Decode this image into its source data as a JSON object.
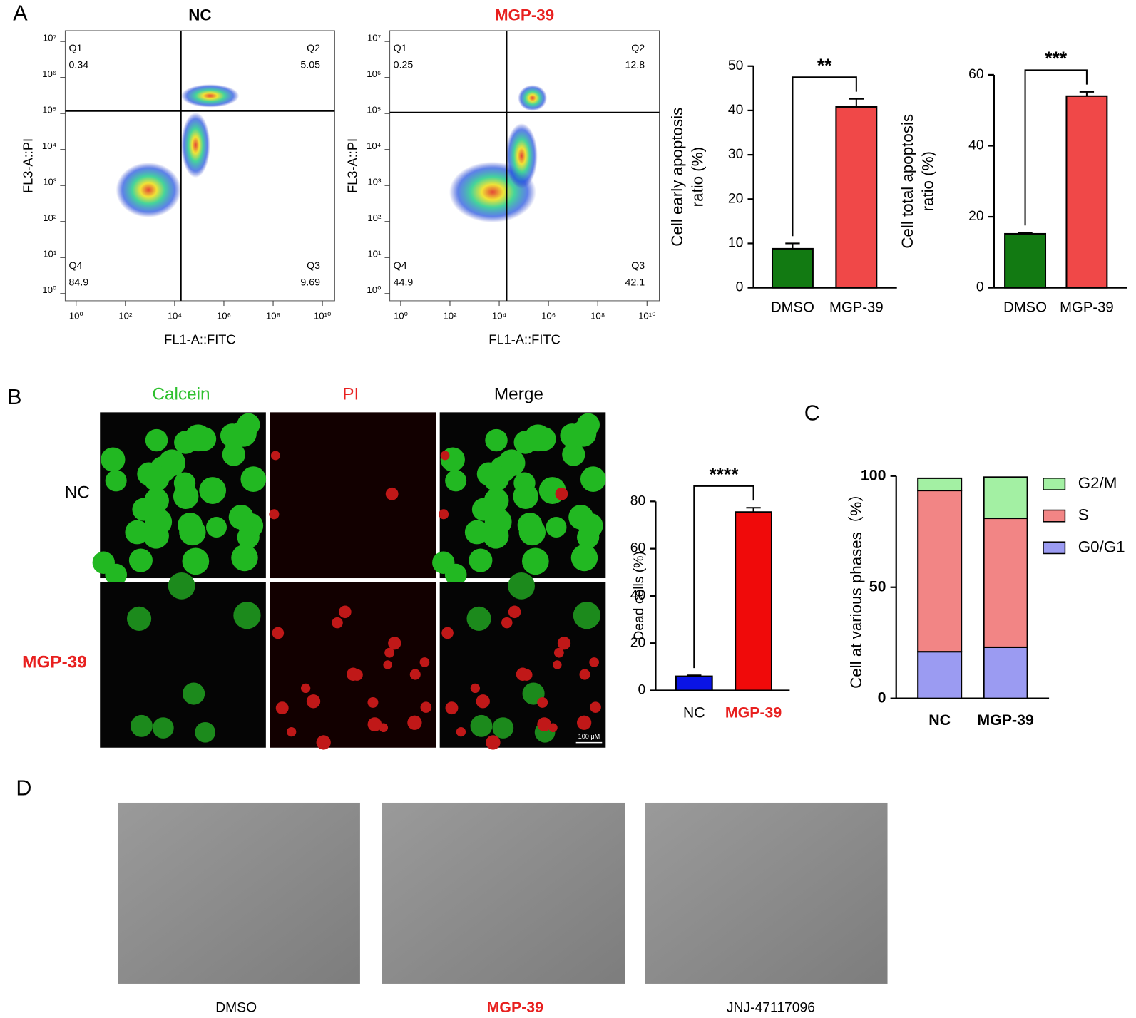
{
  "panel_labels": [
    "A",
    "B",
    "C",
    "D"
  ],
  "fluorescence": {
    "columns": [
      "Calcein",
      "PI",
      "Merge"
    ],
    "rows": [
      "NC",
      "MGP-39"
    ],
    "scale_bar": "100 μM"
  },
  "tube_formation": {
    "labels": [
      "DMSO",
      "MGP-39",
      "JNJ-47117096"
    ]
  },
  "chart_data": [
    {
      "type": "flow",
      "title": "NC",
      "title_color": "#000000",
      "xlabel": "FL1-A::FITC",
      "ylabel": "FL3-A::PI",
      "log_x": true,
      "log_y": true,
      "xlim": [
        0.36,
        31600000000
      ],
      "ylim": [
        0.63,
        20000000
      ],
      "xticks": [
        {
          "value": 1,
          "label": "10⁰"
        },
        {
          "value": 100,
          "label": "10²"
        },
        {
          "value": 10000,
          "label": "10⁴"
        },
        {
          "value": 1000000,
          "label": "10⁶"
        },
        {
          "value": 100000000,
          "label": "10⁸"
        },
        {
          "value": 10000000000,
          "label": "10¹⁰"
        }
      ],
      "yticks": [
        {
          "value": 1,
          "label": "10⁰"
        },
        {
          "value": 10,
          "label": "10¹"
        },
        {
          "value": 100,
          "label": "10²"
        },
        {
          "value": 1000,
          "label": "10³"
        },
        {
          "value": 10000,
          "label": "10⁴"
        },
        {
          "value": 100000,
          "label": "10⁵"
        },
        {
          "value": 1000000,
          "label": "10⁶"
        },
        {
          "value": 10000000,
          "label": "10⁷"
        }
      ],
      "gate": [
        18000,
        117000
      ],
      "quadrants": [
        {
          "name": "Q1",
          "value": 0.34
        },
        {
          "name": "Q2",
          "value": 5.05
        },
        {
          "name": "Q3",
          "value": 9.69
        },
        {
          "name": "Q4",
          "value": 84.9
        }
      ]
    },
    {
      "type": "flow",
      "title": "MGP-39",
      "title_color": "#e8201f",
      "xlabel": "FL1-A::FITC",
      "ylabel": "FL3-A::PI",
      "log_x": true,
      "log_y": true,
      "xlim": [
        0.36,
        31600000000
      ],
      "ylim": [
        0.63,
        20000000
      ],
      "xticks": [
        {
          "value": 1,
          "label": "10⁰"
        },
        {
          "value": 100,
          "label": "10²"
        },
        {
          "value": 10000,
          "label": "10⁴"
        },
        {
          "value": 1000000,
          "label": "10⁶"
        },
        {
          "value": 100000000,
          "label": "10⁸"
        },
        {
          "value": 10000000000,
          "label": "10¹⁰"
        }
      ],
      "yticks": [
        {
          "value": 1,
          "label": "10⁰"
        },
        {
          "value": 10,
          "label": "10¹"
        },
        {
          "value": 100,
          "label": "10²"
        },
        {
          "value": 1000,
          "label": "10³"
        },
        {
          "value": 10000,
          "label": "10⁴"
        },
        {
          "value": 100000,
          "label": "10⁵"
        },
        {
          "value": 1000000,
          "label": "10⁶"
        },
        {
          "value": 10000000,
          "label": "10⁷"
        }
      ],
      "gate": [
        20000,
        107000
      ],
      "quadrants": [
        {
          "name": "Q1",
          "value": 0.25
        },
        {
          "name": "Q2",
          "value": 12.8
        },
        {
          "name": "Q3",
          "value": 42.1
        },
        {
          "name": "Q4",
          "value": 44.9
        }
      ]
    },
    {
      "type": "bar",
      "categories": [
        "DMSO",
        "MGP-39"
      ],
      "values": [
        8.8,
        40.8
      ],
      "errors": [
        1.2,
        1.8
      ],
      "colors": [
        "#127a12",
        "#f04848"
      ],
      "ylabel": [
        "Cell early apoptosis",
        "ratio (%)"
      ],
      "significance": "**",
      "ylim": [
        0,
        50
      ],
      "yticks": [
        0,
        10,
        20,
        30,
        40,
        50
      ]
    },
    {
      "type": "bar",
      "categories": [
        "DMSO",
        "MGP-39"
      ],
      "values": [
        15.2,
        54
      ],
      "errors": [
        0.3,
        1.2
      ],
      "colors": [
        "#127a12",
        "#f04848"
      ],
      "ylabel": [
        "Cell total apoptosis",
        "ratio (%)"
      ],
      "significance": "***",
      "ylim": [
        0,
        60
      ],
      "yticks": [
        0,
        20,
        40,
        60
      ]
    },
    {
      "type": "bar",
      "categories": [
        "NC",
        "MGP-39"
      ],
      "category_colors": [
        "#000000",
        "#e8201f"
      ],
      "category_weights": [
        "normal",
        "bold"
      ],
      "values": [
        6,
        75.5
      ],
      "errors": [
        0.4,
        1.8
      ],
      "colors": [
        "#0a14e6",
        "#f00a0a"
      ],
      "ylabel": [
        "Dead cells (%)"
      ],
      "significance": "****",
      "ylim": [
        0,
        80
      ],
      "yticks": [
        0,
        20,
        40,
        60,
        80
      ]
    },
    {
      "type": "stacked_bar",
      "categories": [
        "NC",
        "MGP-39"
      ],
      "ylabel": [
        "Cell at various phases（%）"
      ],
      "ylim": [
        0,
        100
      ],
      "yticks": [
        0,
        50,
        100
      ],
      "legend": "right",
      "series": [
        {
          "name": "G0/G1",
          "color": "#9b9bf2",
          "values": [
            21,
            23
          ]
        },
        {
          "name": "S",
          "color": "#f28585",
          "values": [
            72.5,
            58
          ]
        },
        {
          "name": "G2/M",
          "color": "#a3f0a3",
          "values": [
            5.5,
            18.5
          ]
        }
      ]
    }
  ]
}
